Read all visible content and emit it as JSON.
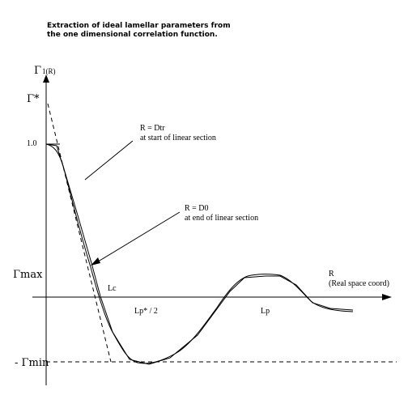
{
  "figure": {
    "title_line1": "Extraction of ideal lamellar parameters from",
    "title_line2": "the one dimensional correlation function.",
    "y_axis": {
      "symbol": "Γ",
      "sub": "1(R)"
    },
    "y_labels": {
      "gamma_star": "Γ*",
      "one": "1.0",
      "gamma_max": "Γmax",
      "gamma_min": "- Γmin"
    },
    "x_axis": {
      "label": "R",
      "sub_label": "(Real space coord)"
    },
    "x_labels": {
      "lc": "Lc",
      "lp_half": "Lp* / 2",
      "lp": "Lp"
    },
    "annotations": {
      "dtr_line1": "R = Dtr",
      "dtr_line2": "at start of linear section",
      "d0_line1": "R = D0",
      "d0_line2": "at end of linear section"
    }
  }
}
